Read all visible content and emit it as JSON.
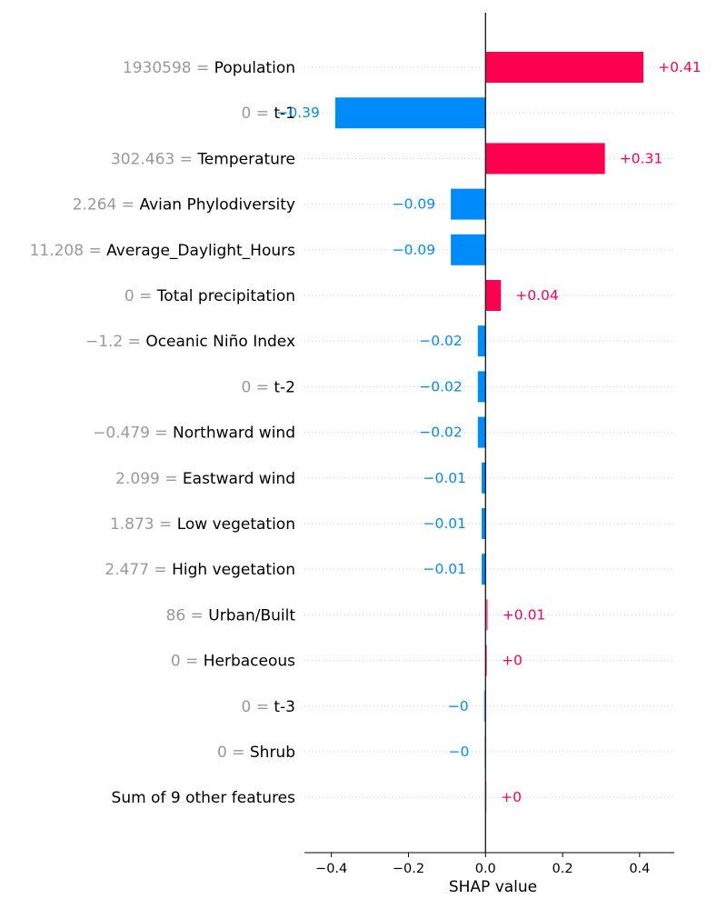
{
  "colors": {
    "positive": "#ff0051",
    "negative": "#008bfb",
    "feature_value": "#999999",
    "gridline": "#cccccc"
  },
  "chart_data": {
    "type": "bar",
    "orientation": "horizontal",
    "title": "",
    "xlabel": "SHAP value",
    "ylabel": "",
    "xlim": [
      -0.47,
      0.49
    ],
    "xticks": [
      -0.4,
      -0.2,
      0.0,
      0.2,
      0.4
    ],
    "xtick_labels": [
      "−0.4",
      "−0.2",
      "0.0",
      "0.2",
      "0.4"
    ],
    "grid": "horizontal dotted",
    "rows": [
      {
        "value_text": "1930598",
        "feature": "Population",
        "shap": 0.41,
        "label": "+0.41"
      },
      {
        "value_text": "0",
        "feature": "t-1",
        "shap": -0.39,
        "label": "−0.39"
      },
      {
        "value_text": "302.463",
        "feature": "Temperature",
        "shap": 0.31,
        "label": "+0.31"
      },
      {
        "value_text": "2.264",
        "feature": "Avian Phylodiversity",
        "shap": -0.09,
        "label": "−0.09"
      },
      {
        "value_text": "11.208",
        "feature": "Average_Daylight_Hours",
        "shap": -0.09,
        "label": "−0.09"
      },
      {
        "value_text": "0",
        "feature": "Total precipitation",
        "shap": 0.04,
        "label": "+0.04"
      },
      {
        "value_text": "−1.2",
        "feature": "Oceanic Niño Index",
        "shap": -0.02,
        "label": "−0.02"
      },
      {
        "value_text": "0",
        "feature": "t-2",
        "shap": -0.02,
        "label": "−0.02"
      },
      {
        "value_text": "−0.479",
        "feature": "Northward wind",
        "shap": -0.02,
        "label": "−0.02"
      },
      {
        "value_text": "2.099",
        "feature": "Eastward wind",
        "shap": -0.01,
        "label": "−0.01"
      },
      {
        "value_text": "1.873",
        "feature": "Low vegetation",
        "shap": -0.01,
        "label": "−0.01"
      },
      {
        "value_text": "2.477",
        "feature": "High vegetation",
        "shap": -0.01,
        "label": "−0.01"
      },
      {
        "value_text": "86",
        "feature": "Urban/Built",
        "shap": 0.006,
        "label": "+0.01"
      },
      {
        "value_text": "0",
        "feature": "Herbaceous",
        "shap": 0.004,
        "label": "+0"
      },
      {
        "value_text": "0",
        "feature": "t-3",
        "shap": -0.004,
        "label": "−0"
      },
      {
        "value_text": "0",
        "feature": "Shrub",
        "shap": -0.002,
        "label": "−0"
      },
      {
        "value_text": "",
        "feature": "Sum of 9 other features",
        "shap": 0.002,
        "label": "+0"
      }
    ]
  }
}
